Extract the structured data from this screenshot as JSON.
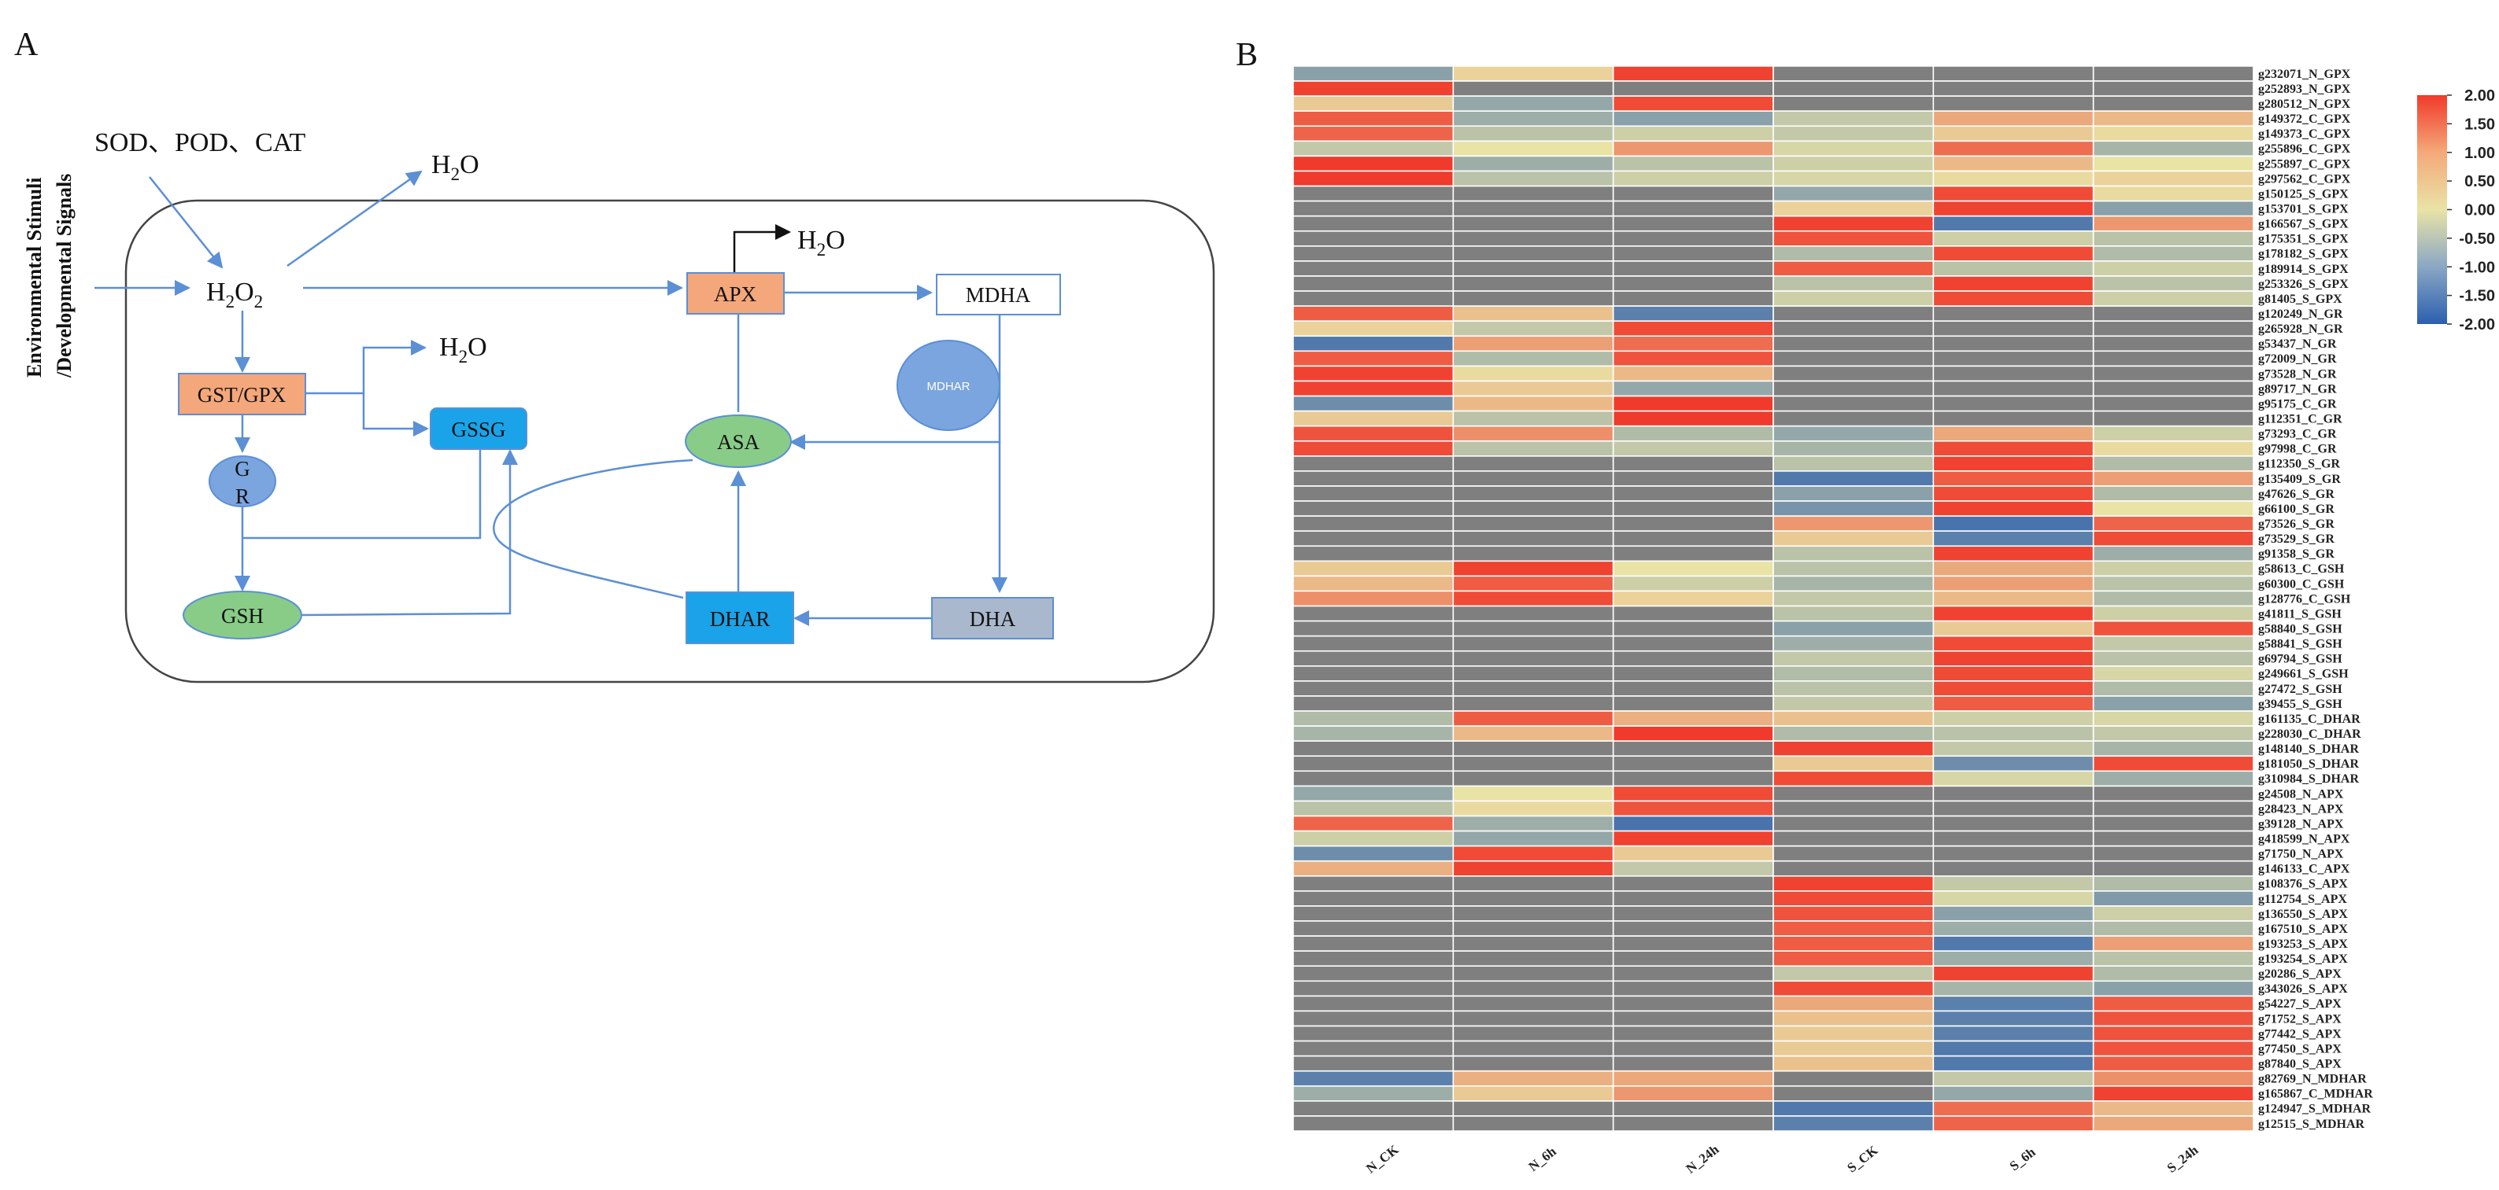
{
  "panel_a": {
    "letter": "A",
    "side_label_line1": "Environmental Stimuli",
    "side_label_line2": "/Developmental Signals",
    "enzymes_top": "SOD、POD、CAT",
    "h2o2": {
      "base": "H",
      "sub1": "2",
      "mid": "O",
      "sub2": "2"
    },
    "water": {
      "base": "H",
      "sub": "2",
      "tail": "O"
    },
    "nodes": {
      "apx": "APX",
      "mdha": "MDHA",
      "mdhar": "MDHAR",
      "gst_gpx": "GST/GPX",
      "gssg": "GSSG",
      "asa": "ASA",
      "gr_line1": "G",
      "gr_line2": "R",
      "gsh": "GSH",
      "dhar": "DHAR",
      "dha": "DHA"
    },
    "colors": {
      "orange": "#f4a77a",
      "blue_box": "#1aa3e8",
      "green": "#88cc88",
      "blue_circle": "#7ba5de",
      "grey_box": "#a9b8cc",
      "arrow": "#5b8fd6"
    }
  },
  "panel_b": {
    "letter": "B",
    "chart_data": {
      "type": "heatmap",
      "columns": [
        "N_CK",
        "N_6h",
        "N_24h",
        "S_CK",
        "S_6h",
        "S_24h"
      ],
      "rows": [
        "g232071_N_GPX",
        "g252893_N_GPX",
        "g280512_N_GPX",
        "g149372_C_GPX",
        "g149373_C_GPX",
        "g255896_C_GPX",
        "g255897_C_GPX",
        "g297562_C_GPX",
        "g150125_S_GPX",
        "g153701_S_GPX",
        "g166567_S_GPX",
        "g175351_S_GPX",
        "g178182_S_GPX",
        "g189914_S_GPX",
        "g253326_S_GPX",
        "g81405_S_GPX",
        "g120249_N_GR",
        "g265928_N_GR",
        "g53437_N_GR",
        "g72009_N_GR",
        "g73528_N_GR",
        "g89717_N_GR",
        "g95175_C_GR",
        "g112351_C_GR",
        "g73293_C_GR",
        "g97998_C_GR",
        "g112350_S_GR",
        "g135409_S_GR",
        "g47626_S_GR",
        "g66100_S_GR",
        "g73526_S_GR",
        "g73529_S_GR",
        "g91358_S_GR",
        "g58613_C_GSH",
        "g60300_C_GSH",
        "g128776_C_GSH",
        "g41811_S_GSH",
        "g58840_S_GSH",
        "g58841_S_GSH",
        "g69794_S_GSH",
        "g249661_S_GSH",
        "g27472_S_GSH",
        "g39455_S_GSH",
        "g161135_C_DHAR",
        "g228030_C_DHAR",
        "g148140_S_DHAR",
        "g181050_S_DHAR",
        "g310984_S_DHAR",
        "g24508_N_APX",
        "g28423_N_APX",
        "g39128_N_APX",
        "g418599_N_APX",
        "g71750_N_APX",
        "g146133_C_APX",
        "g108376_S_APX",
        "g112754_S_APX",
        "g136550_S_APX",
        "g167510_S_APX",
        "g193253_S_APX",
        "g193254_S_APX",
        "g20286_S_APX",
        "g343026_S_APX",
        "g54227_S_APX",
        "g71752_S_APX",
        "g77442_S_APX",
        "g77450_S_APX",
        "g87840_S_APX",
        "g82769_N_MDHAR",
        "g165867_C_MDHAR",
        "g124947_S_MDHAR",
        "g12515_S_MDHAR"
      ],
      "missing_value_color": "#7f7f7f",
      "values": [
        [
          -1.0,
          0.2,
          1.9,
          null,
          null,
          null
        ],
        [
          1.9,
          null,
          null,
          null,
          null,
          null
        ],
        [
          0.3,
          -0.9,
          1.8,
          null,
          null,
          null
        ],
        [
          1.6,
          -0.8,
          -1.0,
          -0.4,
          0.7,
          0.5
        ],
        [
          1.5,
          -0.5,
          -0.3,
          -0.4,
          0.3,
          0.1
        ],
        [
          -0.4,
          0.0,
          0.9,
          -0.2,
          1.4,
          -0.7
        ],
        [
          2.0,
          -0.8,
          -0.5,
          -0.3,
          0.5,
          0.0
        ],
        [
          2.0,
          -0.5,
          -0.3,
          -0.2,
          0.1,
          0.2
        ],
        [
          null,
          null,
          null,
          -0.9,
          1.8,
          0.1
        ],
        [
          null,
          null,
          null,
          0.2,
          1.9,
          -1.0
        ],
        [
          null,
          null,
          null,
          1.9,
          -1.6,
          0.9
        ],
        [
          null,
          null,
          null,
          1.7,
          -0.3,
          -0.5
        ],
        [
          null,
          null,
          null,
          -0.6,
          1.8,
          -0.6
        ],
        [
          null,
          null,
          null,
          1.6,
          -0.5,
          -0.3
        ],
        [
          null,
          null,
          null,
          -0.5,
          1.9,
          -0.5
        ],
        [
          null,
          null,
          null,
          -0.3,
          1.8,
          -0.3
        ],
        [
          1.6,
          0.4,
          -1.5,
          null,
          null,
          null
        ],
        [
          0.2,
          -0.4,
          1.8,
          null,
          null,
          null
        ],
        [
          -1.6,
          0.8,
          1.4,
          null,
          null,
          null
        ],
        [
          1.6,
          -0.6,
          1.7,
          null,
          null,
          null
        ],
        [
          1.9,
          0.1,
          0.5,
          null,
          null,
          null
        ],
        [
          1.9,
          0.3,
          -0.9,
          null,
          null,
          null
        ],
        [
          -1.3,
          0.5,
          2.0,
          null,
          null,
          null
        ],
        [
          0.3,
          -0.5,
          2.0,
          null,
          null,
          null
        ],
        [
          1.7,
          1.0,
          -0.6,
          -0.9,
          0.7,
          -0.3
        ],
        [
          1.8,
          -0.5,
          -0.4,
          -0.7,
          1.8,
          0.1
        ],
        [
          null,
          null,
          null,
          -0.5,
          1.9,
          -0.6
        ],
        [
          null,
          null,
          null,
          -1.6,
          1.6,
          0.8
        ],
        [
          null,
          null,
          null,
          -1.0,
          1.8,
          -0.6
        ],
        [
          null,
          null,
          null,
          -1.2,
          1.9,
          0.0
        ],
        [
          null,
          null,
          null,
          0.9,
          -1.7,
          1.5
        ],
        [
          null,
          null,
          null,
          0.3,
          -1.5,
          1.8
        ],
        [
          null,
          null,
          null,
          -0.5,
          1.9,
          -0.8
        ],
        [
          0.3,
          1.9,
          0.0,
          -0.5,
          0.7,
          -0.3
        ],
        [
          0.5,
          1.6,
          -0.3,
          -0.7,
          0.8,
          -0.5
        ],
        [
          1.0,
          1.8,
          0.2,
          -0.4,
          0.5,
          -0.6
        ],
        [
          null,
          null,
          null,
          -0.5,
          1.9,
          -0.3
        ],
        [
          null,
          null,
          null,
          -1.0,
          0.3,
          1.7
        ],
        [
          null,
          null,
          null,
          -0.8,
          1.8,
          -0.4
        ],
        [
          null,
          null,
          null,
          -0.4,
          1.9,
          -0.5
        ],
        [
          null,
          null,
          null,
          -0.6,
          1.8,
          -0.2
        ],
        [
          null,
          null,
          null,
          -0.5,
          1.8,
          -0.6
        ],
        [
          null,
          null,
          null,
          -0.4,
          1.6,
          -1.0
        ],
        [
          -0.6,
          1.6,
          0.6,
          0.4,
          -0.3,
          -0.2
        ],
        [
          -0.7,
          0.5,
          2.0,
          -0.6,
          -0.5,
          -0.4
        ],
        [
          null,
          null,
          null,
          1.9,
          -0.4,
          -0.7
        ],
        [
          null,
          null,
          null,
          0.3,
          -1.3,
          1.8
        ],
        [
          null,
          null,
          null,
          1.8,
          -0.2,
          -0.8
        ],
        [
          -0.9,
          0.0,
          1.8,
          null,
          null,
          null
        ],
        [
          -0.5,
          0.1,
          1.7,
          null,
          null,
          null
        ],
        [
          1.5,
          -0.8,
          -1.7,
          null,
          null,
          null
        ],
        [
          -0.3,
          -0.9,
          1.9,
          null,
          null,
          null
        ],
        [
          -1.3,
          1.8,
          0.3,
          null,
          null,
          null
        ],
        [
          0.6,
          1.9,
          -0.4,
          null,
          null,
          null
        ],
        [
          null,
          null,
          null,
          1.9,
          -0.4,
          -0.6
        ],
        [
          null,
          null,
          null,
          1.8,
          -0.2,
          -1.1
        ],
        [
          null,
          null,
          null,
          1.7,
          -1.0,
          -0.3
        ],
        [
          null,
          null,
          null,
          1.6,
          -0.8,
          -0.6
        ],
        [
          null,
          null,
          null,
          1.6,
          -1.6,
          0.8
        ],
        [
          null,
          null,
          null,
          1.6,
          -0.8,
          -0.5
        ],
        [
          null,
          null,
          null,
          -0.4,
          1.9,
          -0.6
        ],
        [
          null,
          null,
          null,
          1.8,
          -0.7,
          -1.0
        ],
        [
          null,
          null,
          null,
          0.7,
          -1.5,
          1.6
        ],
        [
          null,
          null,
          null,
          0.4,
          -1.5,
          1.7
        ],
        [
          null,
          null,
          null,
          0.3,
          -1.5,
          1.7
        ],
        [
          null,
          null,
          null,
          0.3,
          -1.6,
          1.7
        ],
        [
          null,
          null,
          null,
          0.4,
          -1.6,
          1.6
        ],
        [
          -1.5,
          0.6,
          0.7,
          null,
          -0.4,
          1.0
        ],
        [
          -0.8,
          0.3,
          0.9,
          null,
          -0.9,
          1.9
        ],
        [
          null,
          null,
          null,
          -1.6,
          1.4,
          0.5
        ],
        [
          null,
          null,
          null,
          -1.5,
          1.5,
          0.7
        ]
      ],
      "color_scale": {
        "min": -2.0,
        "max": 2.0,
        "stops": [
          "#2b5fae",
          "#e9e3a6",
          "#f03a2b"
        ],
        "ticks": [
          "2.00",
          "1.50",
          "1.00",
          "0.50",
          "0.00",
          "-0.50",
          "-1.00",
          "-1.50",
          "-2.00"
        ]
      }
    }
  }
}
